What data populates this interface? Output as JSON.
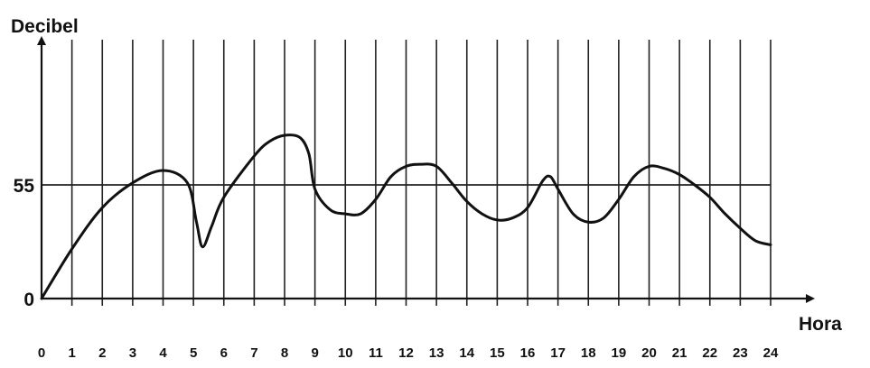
{
  "chart_data": {
    "type": "line",
    "xlabel": "Hora",
    "ylabel": "Decibel",
    "x_ticks": [
      "0",
      "1",
      "2",
      "3",
      "4",
      "5",
      "6",
      "7",
      "8",
      "9",
      "10",
      "11",
      "12",
      "13",
      "14",
      "15",
      "16",
      "17",
      "18",
      "19",
      "20",
      "21",
      "22",
      "23",
      "24"
    ],
    "y_ticks": [
      "0",
      "55"
    ],
    "xlim": [
      0,
      24
    ],
    "ylim": [
      0,
      80
    ],
    "grid": "vertical lines at every hour; horizontal reference line at 55",
    "series": [
      {
        "x": [
          0,
          1,
          2,
          3,
          4,
          4.8,
          5.1,
          5.3,
          5.6,
          6,
          7,
          7.5,
          8,
          8.5,
          8.8,
          9,
          9.5,
          10,
          10.5,
          11,
          11.5,
          12,
          12.5,
          13,
          13.5,
          14,
          14.5,
          15,
          15.5,
          16,
          16.5,
          16.75,
          17,
          17.5,
          18,
          18.5,
          19,
          19.5,
          20,
          20.5,
          21,
          21.5,
          22,
          22.5,
          23,
          23.5,
          24
        ],
        "y": [
          0,
          24,
          44,
          56,
          62,
          56,
          37,
          25,
          35,
          49,
          69,
          76,
          79,
          78,
          70,
          53,
          43,
          41,
          41,
          48,
          59,
          64,
          65,
          64,
          56,
          47,
          41,
          38,
          39,
          44,
          57,
          59,
          53,
          41,
          37,
          39,
          48,
          59,
          64,
          63,
          60,
          55,
          49,
          41,
          34,
          28,
          26
        ]
      }
    ]
  }
}
